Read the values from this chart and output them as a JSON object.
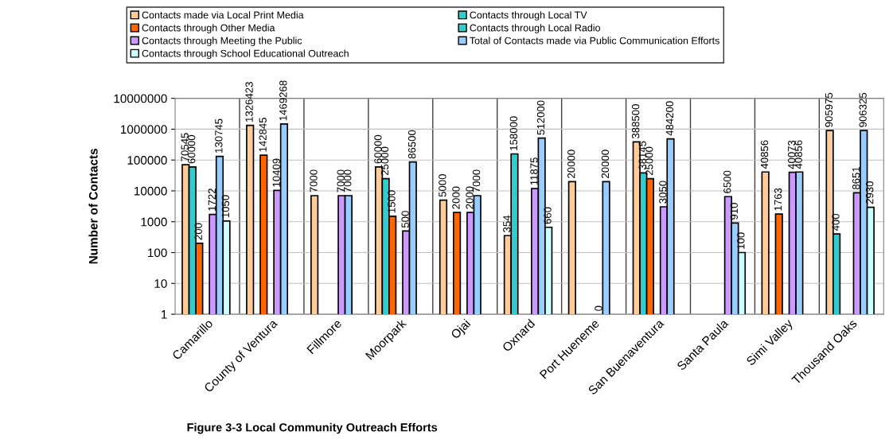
{
  "chart_data": {
    "type": "bar",
    "title": "Figure 3-3 Local Community Outreach Efforts",
    "ylabel": "Number of Contacts",
    "categories": [
      "Camarillo",
      "County of Ventura",
      "Fillmore",
      "Moorpark",
      "Ojai",
      "Oxnard",
      "Port Hueneme",
      "San Buenaventura",
      "Santa Paula",
      "Simi Valley",
      "Thousand Oaks"
    ],
    "series": [
      {
        "name": "Contacts made via Local Print Media",
        "color": "#ffcc99",
        "values": [
          70545,
          1326423,
          7000,
          60000,
          5000,
          354,
          20000,
          388500,
          null,
          40856,
          905975
        ]
      },
      {
        "name": "Contacts through Local TV",
        "color": "#33cccc",
        "values": [
          60000,
          null,
          null,
          25000,
          null,
          158000,
          null,
          38145,
          null,
          null,
          400
        ]
      },
      {
        "name": "Contacts through Other Media",
        "color": "#ff6600",
        "values": [
          200,
          142845,
          null,
          1500,
          2000,
          null,
          null,
          25000,
          null,
          1763,
          null
        ]
      },
      {
        "name": "Contacts through Local Radio",
        "color": "#33cccc",
        "values": [
          null,
          null,
          null,
          null,
          null,
          null,
          null,
          null,
          null,
          null,
          null
        ]
      },
      {
        "name": "Contacts through Meeting the Public",
        "color": "#cc99ff",
        "values": [
          1722,
          10409,
          7000,
          500,
          2000,
          11875,
          null,
          3050,
          6500,
          40073,
          8651
        ],
        "value_labels": [
          "1722",
          "10409",
          "7000",
          "500",
          "2000",
          "11875",
          "0",
          "3050",
          "6500",
          "40073",
          "8651"
        ]
      },
      {
        "name": "Total of Contacts made via Public Communication Efforts",
        "color": "#99ccff",
        "values": [
          130745,
          1469268,
          7000,
          86500,
          7000,
          512000,
          20000,
          484200,
          910,
          40856,
          906325
        ]
      },
      {
        "name": "Contacts through School Educational Outreach",
        "color": "#ccffff",
        "values": [
          1050,
          null,
          null,
          null,
          null,
          660,
          null,
          null,
          100,
          null,
          2930
        ]
      }
    ],
    "log": true,
    "ylim": [
      1,
      10000000
    ],
    "yticks": [
      1,
      10,
      100,
      1000,
      10000,
      100000,
      1000000,
      10000000
    ],
    "grid": true,
    "legend": "top",
    "data_labels": true
  }
}
